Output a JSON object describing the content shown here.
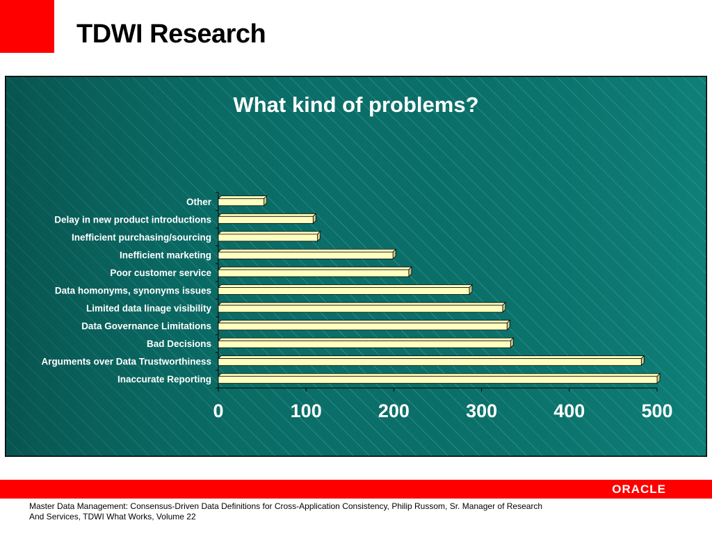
{
  "slide": {
    "title": "TDWI Research",
    "citation": "Master Data Management: Consensus-Driven Data Definitions for Cross-Application Consistency, Philip Russom, Sr. Manager of Research And Services, TDWI What Works, Volume 22",
    "brand": "ORACLE"
  },
  "colors": {
    "accent_red": "#ff0000",
    "panel_bg": "#0b6e68",
    "panel_bg_light": "#138a82",
    "bar_fill": "#ffffc0",
    "bar_side": "#c8c888",
    "text_white": "#ffffff"
  },
  "chart_data": {
    "type": "bar",
    "orientation": "horizontal",
    "title": "What kind of problems?",
    "xlabel": "",
    "ylabel": "",
    "xlim": [
      0,
      500
    ],
    "xticks": [
      0,
      100,
      200,
      300,
      400,
      500
    ],
    "grid": false,
    "legend": "none",
    "categories": [
      "Inaccurate Reporting",
      "Arguments over Data Trustworthiness",
      "Bad Decisions",
      "Data Governance Limitations",
      "Limited data linage visibility",
      "Data homonyms, synonyms issues",
      "Poor customer service",
      "Inefficient marketing",
      "Inefficient purchasing/sourcing",
      "Delay in new product introductions",
      "Other"
    ],
    "values": [
      500,
      482,
      333,
      329,
      324,
      286,
      217,
      199,
      113,
      108,
      52
    ]
  }
}
